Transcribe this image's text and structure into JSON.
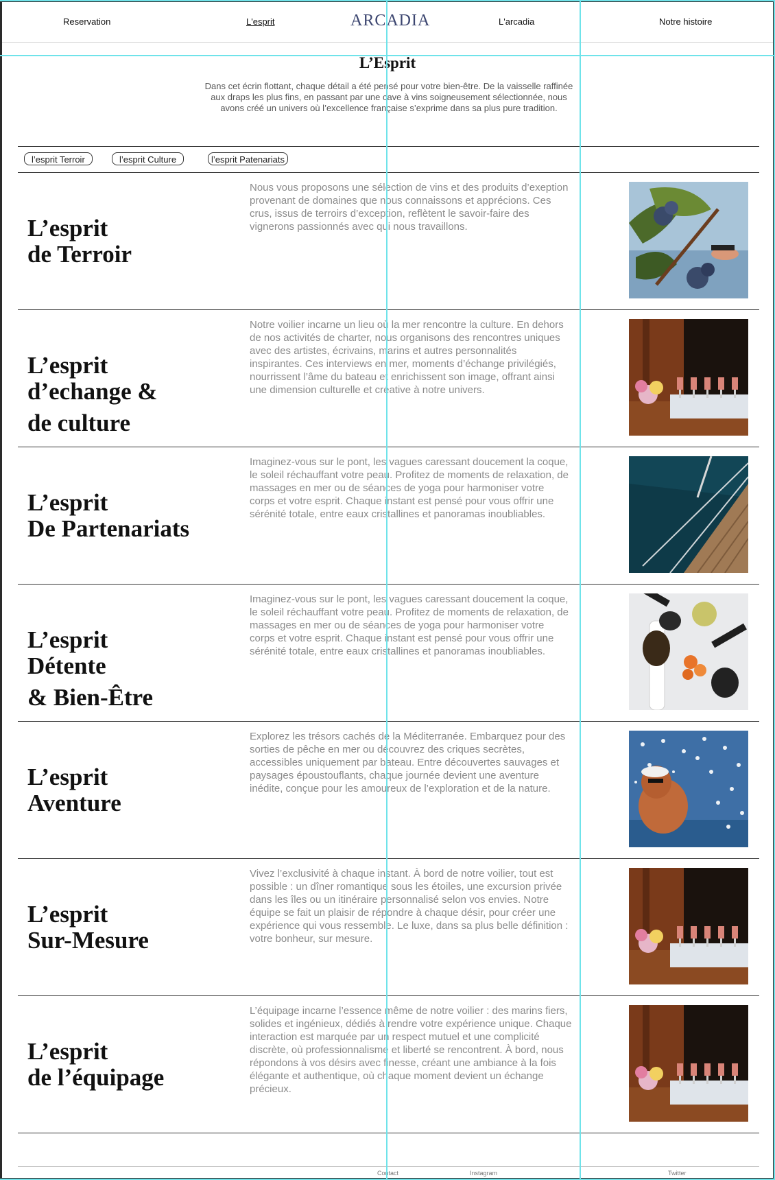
{
  "nav": {
    "reservation": "Reservation",
    "esprit": "L'esprit",
    "logo": "ARCADIA",
    "arcadia": "L'arcadia",
    "histoire": "Notre histoire"
  },
  "intro": {
    "title": "L’Esprit",
    "text": "Dans cet écrin flottant, chaque détail a été pensé pour votre bien-être. De la vaisselle raffinée aux draps les plus fins, en passant par une cave à vins soigneusement sélectionnée, nous avons créé un univers où l’excellence française s’exprime dans sa plus pure tradition."
  },
  "filters": [
    "l’esprit Terroir",
    "l’esprit Culture",
    "l’esprit Patenariats"
  ],
  "sections": [
    {
      "heading": [
        "L’esprit",
        "de Terroir"
      ],
      "text": "Nous vous proposons une sélection de vins et des produits d’exeption provenant de domaines que nous connaissons et apprécions. Ces crus, issus de terroirs d’exception, reflètent le savoir-faire des vignerons passionnés avec qui nous travaillons.",
      "image": "grapes-harvest"
    },
    {
      "heading": [
        "L’esprit",
        "d’echange &",
        "de culture"
      ],
      "text": "Notre voilier incarne un lieu où la mer rencontre la culture. En dehors de nos activités de charter, nous organisons des rencontres uniques avec des artistes, écrivains, marins et autres personnalités inspirantes. Ces interviews en mer, moments d’échange privilégiés, nourrissent l’âme du bateau et enrichissent son image, offrant ainsi une dimension culturelle et créative à notre univers.",
      "image": "champagne-glasses"
    },
    {
      "heading": [
        "L’esprit",
        "De Partenariats"
      ],
      "text": "Imaginez-vous sur le pont, les vagues caressant doucement la coque, le soleil réchauffant votre peau. Profitez de moments de relaxation, de massages en mer ou de séances de yoga pour harmoniser votre corps et votre esprit. Chaque instant est pensé pour vous offrir une sérénité totale, entre eaux cristallines et panoramas inoubliables.",
      "image": "boat-deck"
    },
    {
      "heading": [
        "L’esprit",
        "Détente",
        "& Bien-Être"
      ],
      "text": "Imaginez-vous sur le pont, les vagues caressant doucement la coque, le soleil réchauffant votre peau. Profitez de moments de relaxation, de massages en mer ou de séances de yoga pour harmoniser votre corps et votre esprit. Chaque instant est pensé pour vous offrir une sérénité totale, entre eaux cristallines et panoramas inoubliables.",
      "image": "caviar-spoons"
    },
    {
      "heading": [
        "L’esprit",
        "Aventure"
      ],
      "text": "Explorez les trésors cachés de la Méditerranée. Embarquez pour des sorties de pêche en mer ou découvrez des criques secrètes, accessibles uniquement par bateau. Entre découvertes sauvages et paysages époustouflants, chaque journée devient une aventure inédite, conçue pour les amoureux de l’exploration et de la nature.",
      "image": "man-with-birds"
    },
    {
      "heading": [
        "L’esprit",
        "Sur-Mesure"
      ],
      "text": "Vivez l’exclusivité à chaque instant. À bord de notre voilier, tout est possible : un dîner romantique sous les étoiles, une excursion privée dans les îles ou un itinéraire personnalisé selon vos envies. Notre équipe se fait un plaisir de répondre à chaque désir, pour créer une expérience qui vous ressemble. Le luxe, dans sa plus belle définition : votre bonheur, sur mesure.",
      "image": "champagne-glasses"
    },
    {
      "heading": [
        "L’esprit",
        "de l’équipage"
      ],
      "text": "L’équipage incarne l’essence même de notre voilier : des marins fiers, solides et ingénieux, dédiés à rendre votre expérience unique. Chaque interaction est marquée par un respect mutuel et une complicité discrète, où professionnalisme et liberté se rencontrent. À bord, nous répondons à vos désirs avec finesse, créant une ambiance à la fois élégante et authentique, où chaque moment devient un échange précieux.",
      "image": "champagne-glasses"
    }
  ],
  "footer": {
    "contact": "Contact",
    "instagram": "Instagram",
    "twitter": "Twitter"
  }
}
